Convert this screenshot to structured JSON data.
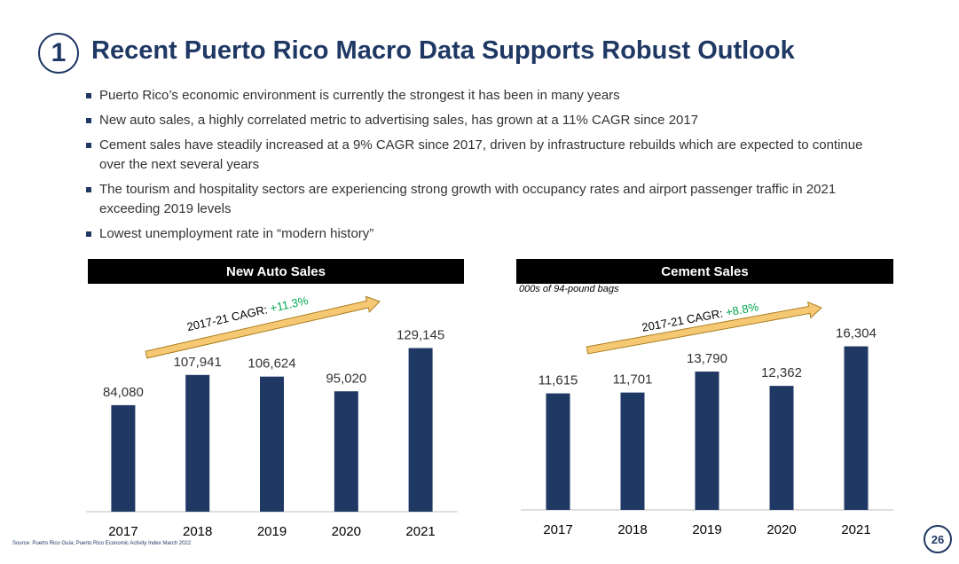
{
  "header": {
    "section_number": "1",
    "title": "Recent Puerto Rico Macro Data Supports Robust Outlook"
  },
  "bullets": [
    "Puerto Rico’s economic environment is currently the strongest it has been in many years",
    "New auto sales, a highly correlated metric to advertising sales, has grown at a 11% CAGR since 2017",
    "Cement sales have steadily increased at a 9% CAGR since 2017, driven by infrastructure rebuilds which are expected to continue over the next several years",
    "The tourism and hospitality sectors are experiencing strong growth with occupancy rates and airport passenger traffic in 2021 exceeding 2019 levels",
    "Lowest unemployment rate in “modern history”"
  ],
  "colors": {
    "bar": "#1f3864",
    "arrow": "#f7c873",
    "cagr_value": "#00a650",
    "title": "#1f3864"
  },
  "chart_data": [
    {
      "type": "bar",
      "title": "New Auto Sales",
      "subtitle": "",
      "categories": [
        "2017",
        "2018",
        "2019",
        "2020",
        "2021"
      ],
      "values": [
        84080,
        107941,
        106624,
        95020,
        129145
      ],
      "value_labels": [
        "84,080",
        "107,941",
        "106,624",
        "95,020",
        "129,145"
      ],
      "ylim": [
        0,
        140000
      ],
      "cagr_label": "2017-21 CAGR: ",
      "cagr_value": "+11.3%",
      "xlabel": "",
      "ylabel": ""
    },
    {
      "type": "bar",
      "title": "Cement Sales",
      "subtitle": "000s of 94-pound bags",
      "categories": [
        "2017",
        "2018",
        "2019",
        "2020",
        "2021"
      ],
      "values": [
        11615,
        11701,
        13790,
        12362,
        16304
      ],
      "value_labels": [
        "11,615",
        "11,701",
        "13,790",
        "12,362",
        "16,304"
      ],
      "ylim": [
        0,
        17680
      ],
      "cagr_label": "2017-21 CAGR: ",
      "cagr_value": "+8.8%",
      "xlabel": "",
      "ylabel": ""
    }
  ],
  "footer": {
    "source": "Source: Puerto Rico Guía; Puerto Rico Economic Activity Index March 2022",
    "page_number": "26"
  }
}
